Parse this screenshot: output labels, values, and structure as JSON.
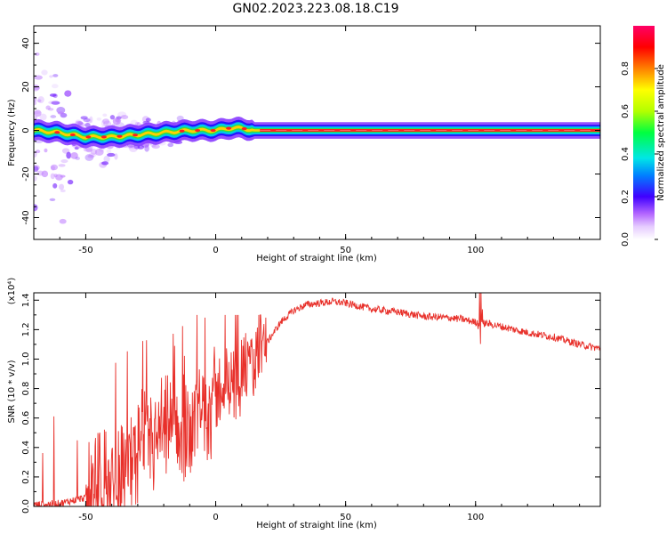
{
  "title": "GN02.2023.223.08.18.C19",
  "chart_data": [
    {
      "type": "heatmap",
      "xlabel": "Height of straight line (km)",
      "ylabel": "Frequency (Hz)",
      "xlim": [
        -70,
        148
      ],
      "ylim": [
        -50,
        48
      ],
      "xticks": [
        -50,
        0,
        50,
        100
      ],
      "yticks": [
        -40,
        -20,
        0,
        20,
        40
      ],
      "colorbar": {
        "label": "Normalized spectral amplitude",
        "range": [
          0.0,
          1.0
        ],
        "ticks": [
          "0.0",
          "0.2",
          "0.4",
          "0.6",
          "0.8"
        ]
      },
      "ridge": [
        {
          "x": -70,
          "y": 0
        },
        {
          "x": -60,
          "y": -1
        },
        {
          "x": -50,
          "y": -3
        },
        {
          "x": -40,
          "y": -3
        },
        {
          "x": -30,
          "y": -2
        },
        {
          "x": -20,
          "y": -1
        },
        {
          "x": -10,
          "y": 0
        },
        {
          "x": 0,
          "y": 0
        },
        {
          "x": 5,
          "y": 1
        },
        {
          "x": 10,
          "y": 1
        },
        {
          "x": 15,
          "y": 0
        },
        {
          "x": 148,
          "y": 0
        }
      ]
    },
    {
      "type": "line",
      "xlabel": "Height of straight line (km)",
      "ylabel": "SNR (10 * v/v)",
      "yscale_note": "(x10⁴)",
      "xlim": [
        -70,
        148
      ],
      "ylim": [
        0,
        1.45
      ],
      "xticks": [
        -50,
        0,
        50,
        100
      ],
      "yticks": [
        "0.0",
        "0.2",
        "0.4",
        "0.6",
        "0.8",
        "1.0",
        "1.2",
        "1.4"
      ],
      "series": [
        {
          "color": "#e8302a",
          "x": [
            -70,
            -60,
            -50,
            -45,
            -40,
            -35,
            -30,
            -25,
            -20,
            -15,
            -10,
            -5,
            0,
            5,
            10,
            15,
            20,
            25,
            30,
            35,
            40,
            45,
            50,
            55,
            60,
            70,
            80,
            90,
            95,
            100,
            105,
            110,
            120,
            130,
            140,
            148
          ],
          "y": [
            0.0,
            0.01,
            0.05,
            0.12,
            0.2,
            0.3,
            0.4,
            0.45,
            0.5,
            0.55,
            0.6,
            0.68,
            0.78,
            0.85,
            0.92,
            1.0,
            1.12,
            1.25,
            1.33,
            1.37,
            1.38,
            1.39,
            1.38,
            1.36,
            1.34,
            1.32,
            1.29,
            1.28,
            1.27,
            1.25,
            1.24,
            1.22,
            1.18,
            1.15,
            1.1,
            1.07
          ]
        }
      ]
    }
  ]
}
